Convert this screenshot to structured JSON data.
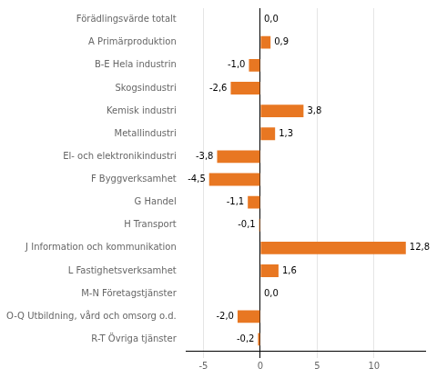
{
  "chart_data": {
    "type": "bar",
    "orientation": "horizontal",
    "categories": [
      "R-T Övriga tjänster",
      "O-Q Utbildning, vård och omsorg o.d.",
      "M-N Företagstjänster",
      "L Fastighetsverksamhet",
      "J Information och kommunikation",
      "H Transport",
      "G Handel",
      "F Byggverksamhet",
      "El- och elektronikindustri",
      "Metallindustri",
      "Kemisk industri",
      "Skogsindustri",
      "B-E Hela industrin",
      "A Primärproduktion",
      "Förädlingsvärde totalt"
    ],
    "values": [
      -0.2,
      -2.0,
      0.0,
      1.6,
      12.8,
      -0.1,
      -1.1,
      -4.5,
      -3.8,
      1.3,
      3.8,
      -2.6,
      -1.0,
      0.9,
      0.0
    ],
    "value_labels": [
      "-0,2",
      "-2,0",
      "0,0",
      "1,6",
      "12,8",
      "-0,1",
      "-1,1",
      "-4,5",
      "-3,8",
      "1,3",
      "3,8",
      "-2,6",
      "-1,0",
      "0,9",
      "0,0"
    ],
    "data_labels": true,
    "color": "#E87722",
    "xlim": [
      -6.5,
      14.5
    ],
    "xticks": [
      -5,
      0,
      5,
      10
    ],
    "grid": true
  }
}
